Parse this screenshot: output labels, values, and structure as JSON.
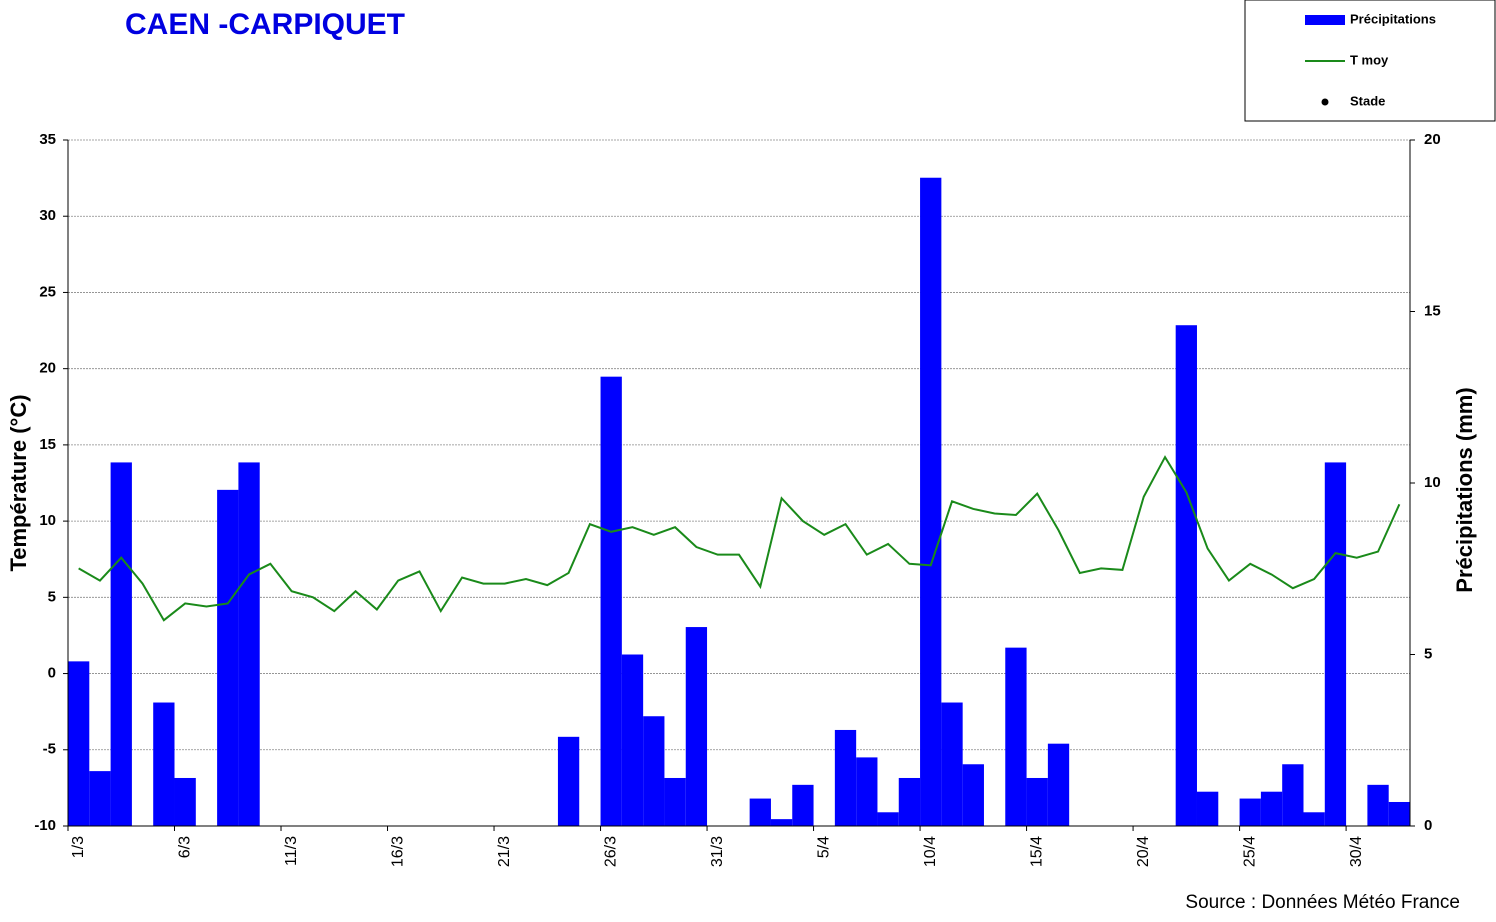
{
  "chart_data": {
    "type": "bar",
    "title": "CAEN -CARPIQUET",
    "ylabel": "Température (°C)",
    "y2label": "Précipitations (mm)",
    "source": "Source : Données Météo France",
    "categories": [
      "1/3",
      null,
      null,
      null,
      null,
      "6/3",
      null,
      null,
      null,
      null,
      "11/3",
      null,
      null,
      null,
      null,
      "16/3",
      null,
      null,
      null,
      null,
      "21/3",
      null,
      null,
      null,
      null,
      "26/3",
      null,
      null,
      null,
      null,
      "31/3",
      null,
      null,
      null,
      null,
      "5/4",
      null,
      null,
      null,
      null,
      "10/4",
      null,
      null,
      null,
      null,
      "15/4",
      null,
      null,
      null,
      null,
      "20/4",
      null,
      null,
      null,
      null,
      "25/4",
      null,
      null,
      null,
      null,
      "30/4",
      null,
      null
    ],
    "series": [
      {
        "name": "Précipitations",
        "type": "bar",
        "axis": "y2",
        "color": "#0000ff",
        "values": [
          4.8,
          1.6,
          10.6,
          0,
          3.6,
          1.4,
          0,
          9.8,
          10.6,
          0,
          0,
          0,
          0,
          0,
          0,
          0,
          0,
          0,
          0,
          0,
          0,
          0,
          0,
          2.6,
          0,
          13.1,
          5.0,
          3.2,
          1.4,
          5.8,
          0,
          0,
          0.8,
          0.2,
          1.2,
          0,
          2.8,
          2.0,
          0.4,
          1.4,
          18.9,
          3.6,
          1.8,
          0,
          5.2,
          1.4,
          2.4,
          0,
          0,
          0,
          0,
          0,
          14.6,
          1.0,
          0,
          0.8,
          1.0,
          1.8,
          0.4,
          10.6,
          0,
          1.2,
          0.7
        ]
      },
      {
        "name": "T moy",
        "type": "line",
        "color": "#1a8a1a",
        "values": [
          6.9,
          6.1,
          7.6,
          5.9,
          3.5,
          4.6,
          4.4,
          4.6,
          6.5,
          7.2,
          5.4,
          5.0,
          4.1,
          5.4,
          4.2,
          6.1,
          6.7,
          4.1,
          6.3,
          5.9,
          5.9,
          6.2,
          5.8,
          6.6,
          9.8,
          9.3,
          9.6,
          9.1,
          9.6,
          8.3,
          7.8,
          7.8,
          5.7,
          11.5,
          10.0,
          9.1,
          9.8,
          7.8,
          8.5,
          7.2,
          7.1,
          11.3,
          10.8,
          10.5,
          10.4,
          11.8,
          9.4,
          6.6,
          6.9,
          6.8,
          11.6,
          14.2,
          11.9,
          8.2,
          6.1,
          7.2,
          6.5,
          5.6,
          6.2,
          7.9,
          7.6,
          8.0,
          11.1
        ]
      },
      {
        "name": "Stade",
        "type": "scatter",
        "color": "#000000",
        "values": [
          null,
          null,
          null,
          null,
          null,
          null,
          null,
          null,
          null,
          null,
          null,
          null,
          null,
          null,
          null,
          null,
          null,
          null,
          null,
          null,
          null,
          null,
          null,
          null,
          null,
          null,
          null,
          null,
          null,
          null,
          null,
          null,
          null,
          null,
          null,
          null,
          null,
          null,
          null,
          null,
          null,
          null,
          null,
          null,
          null,
          null,
          null,
          null,
          null,
          null,
          null,
          null,
          null,
          null,
          null,
          null,
          null,
          null,
          null,
          null,
          null,
          null,
          null
        ]
      }
    ],
    "ylim": [
      -10,
      35
    ],
    "yticks": [
      -10,
      -5,
      0,
      5,
      10,
      15,
      20,
      25,
      30,
      35
    ],
    "y2lim": [
      0,
      20
    ],
    "y2ticks": [
      0,
      5,
      10,
      15,
      20
    ],
    "grid": true,
    "legend": "top-right"
  }
}
